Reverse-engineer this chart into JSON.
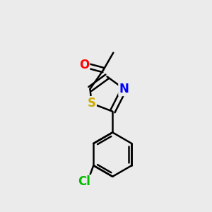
{
  "background_color": "#ebebeb",
  "bond_color": "#000000",
  "bond_width": 1.8,
  "atom_colors": {
    "O": "#ff0000",
    "S": "#ccaa00",
    "N": "#0000ff",
    "Cl": "#00bb00",
    "C": "#000000"
  },
  "font_size": 12
}
